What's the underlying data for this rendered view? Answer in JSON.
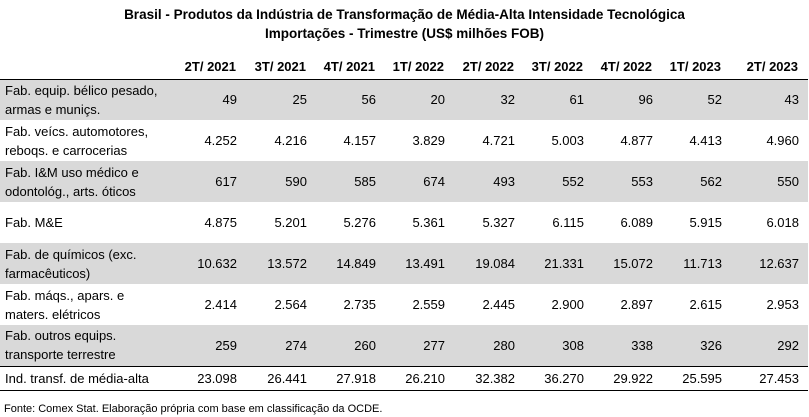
{
  "title": {
    "line1": "Brasil - Produtos da Indústria de Transformação de Média-Alta Intensidade Tecnológica",
    "line2": "Importações - Trimestre (US$ milhões FOB)"
  },
  "table": {
    "columns": [
      "2T/ 2021",
      "3T/ 2021",
      "4T/ 2021",
      "1T/ 2022",
      "2T/ 2022",
      "3T/ 2022",
      "4T/ 2022",
      "1T/ 2023",
      "2T/ 2023"
    ],
    "rows": [
      {
        "label": "Fab. equip. bélico pesado, armas e muniçs.",
        "shaded": true,
        "values": [
          "49",
          "25",
          "56",
          "20",
          "32",
          "61",
          "96",
          "52",
          "43"
        ]
      },
      {
        "label": "Fab. veícs. automotores, reboqs. e carrocerias",
        "shaded": false,
        "values": [
          "4.252",
          "4.216",
          "4.157",
          "3.829",
          "4.721",
          "5.003",
          "4.877",
          "4.413",
          "4.960"
        ]
      },
      {
        "label": "Fab. I&M uso médico e odontológ., arts. óticos",
        "shaded": true,
        "values": [
          "617",
          "590",
          "585",
          "674",
          "493",
          "552",
          "553",
          "562",
          "550"
        ]
      },
      {
        "label": "Fab. M&E",
        "shaded": false,
        "values": [
          "4.875",
          "5.201",
          "5.276",
          "5.361",
          "5.327",
          "6.115",
          "6.089",
          "5.915",
          "6.018"
        ]
      },
      {
        "label": "Fab. de químicos (exc. farmacêuticos)",
        "shaded": true,
        "values": [
          "10.632",
          "13.572",
          "14.849",
          "13.491",
          "19.084",
          "21.331",
          "15.072",
          "11.713",
          "12.637"
        ]
      },
      {
        "label": "Fab. máqs., apars. e maters. elétricos",
        "shaded": false,
        "values": [
          "2.414",
          "2.564",
          "2.735",
          "2.559",
          "2.445",
          "2.900",
          "2.897",
          "2.615",
          "2.953"
        ]
      },
      {
        "label": "Fab. outros equips. transporte terrestre",
        "shaded": true,
        "values": [
          "259",
          "274",
          "260",
          "277",
          "280",
          "308",
          "338",
          "326",
          "292"
        ]
      }
    ],
    "total": {
      "label": "Ind. transf. de média-alta",
      "values": [
        "23.098",
        "26.441",
        "27.918",
        "26.210",
        "32.382",
        "36.270",
        "29.922",
        "25.595",
        "27.453"
      ]
    }
  },
  "footer": "Fonte: Comex Stat. Elaboração própria com base em classificação da OCDE."
}
